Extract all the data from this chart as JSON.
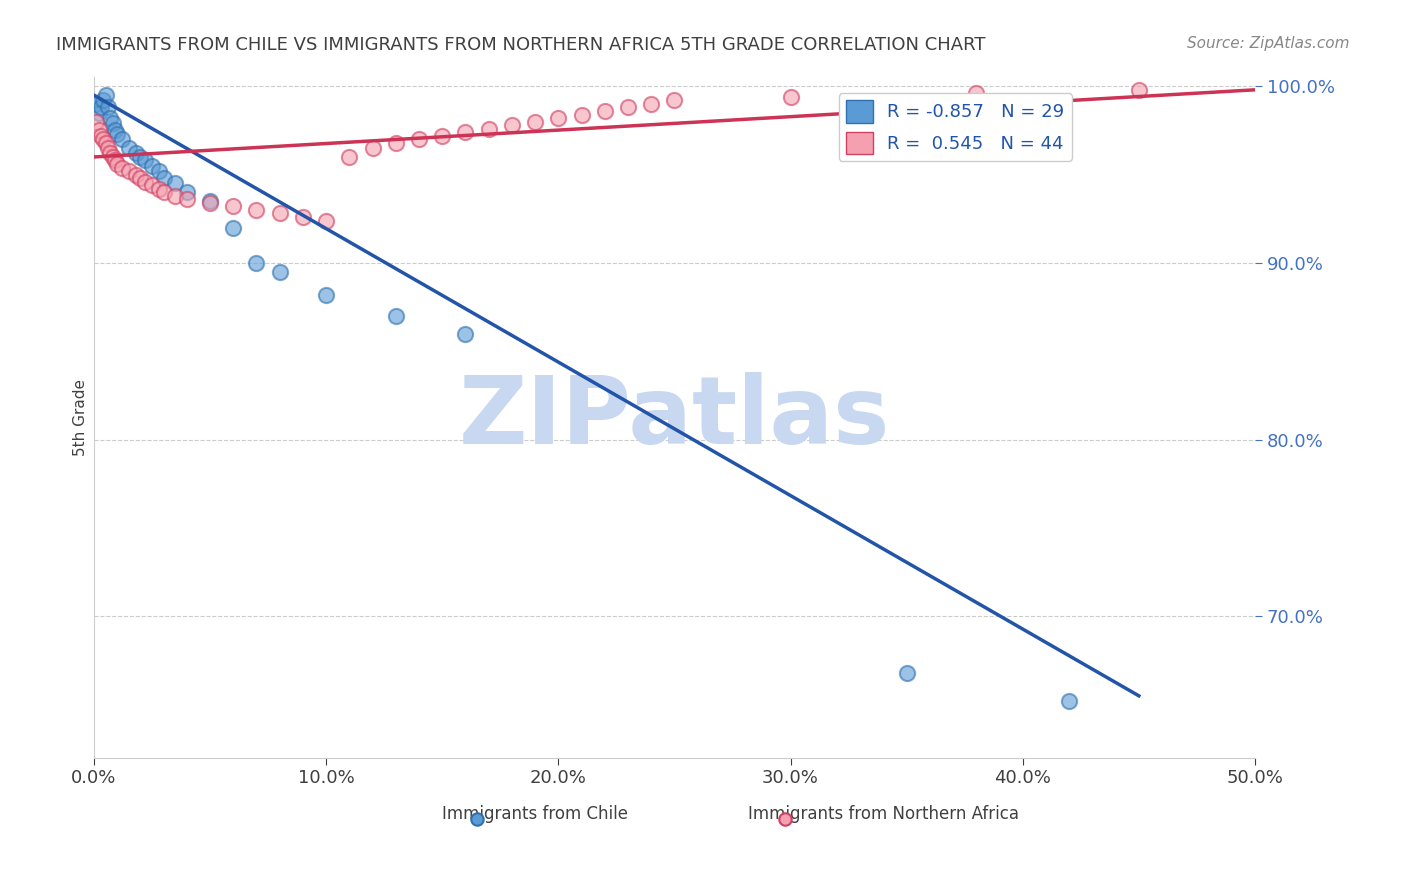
{
  "title": "IMMIGRANTS FROM CHILE VS IMMIGRANTS FROM NORTHERN AFRICA 5TH GRADE CORRELATION CHART",
  "source": "Source: ZipAtlas.com",
  "ylabel_left": "5th Grade",
  "xlim": [
    0.0,
    0.5
  ],
  "ylim": [
    0.62,
    1.005
  ],
  "yticks": [
    0.7,
    0.8,
    0.9,
    1.0
  ],
  "ytick_labels": [
    "70.0%",
    "80.0%",
    "90.0%",
    "100.0%"
  ],
  "xtick_labels": [
    "0.0%",
    "10.0%",
    "20.0%",
    "30.0%",
    "40.0%",
    "50.0%"
  ],
  "xticks": [
    0.0,
    0.1,
    0.2,
    0.3,
    0.4,
    0.5
  ],
  "chile_color": "#5b9bd5",
  "chile_edge_color": "#3070b0",
  "nafrica_color": "#f4a0b0",
  "nafrica_edge_color": "#d04060",
  "chile_R": -0.857,
  "chile_N": 29,
  "nafrica_R": 0.545,
  "nafrica_N": 44,
  "watermark": "ZIPatlas",
  "watermark_color": "#c8d8f0",
  "legend_label_chile": "Immigrants from Chile",
  "legend_label_nafrica": "Immigrants from Northern Africa",
  "chile_scatter_x": [
    0.001,
    0.002,
    0.003,
    0.004,
    0.005,
    0.006,
    0.007,
    0.008,
    0.009,
    0.01,
    0.012,
    0.015,
    0.018,
    0.02,
    0.022,
    0.025,
    0.028,
    0.03,
    0.035,
    0.04,
    0.05,
    0.06,
    0.07,
    0.08,
    0.1,
    0.13,
    0.16,
    0.35,
    0.42
  ],
  "chile_scatter_y": [
    0.99,
    0.985,
    0.988,
    0.992,
    0.995,
    0.988,
    0.982,
    0.979,
    0.975,
    0.973,
    0.97,
    0.965,
    0.962,
    0.96,
    0.958,
    0.955,
    0.952,
    0.948,
    0.945,
    0.94,
    0.935,
    0.92,
    0.9,
    0.895,
    0.882,
    0.87,
    0.86,
    0.668,
    0.652
  ],
  "nafrica_scatter_x": [
    0.001,
    0.002,
    0.003,
    0.004,
    0.005,
    0.006,
    0.007,
    0.008,
    0.009,
    0.01,
    0.012,
    0.015,
    0.018,
    0.02,
    0.022,
    0.025,
    0.028,
    0.03,
    0.035,
    0.04,
    0.05,
    0.06,
    0.07,
    0.08,
    0.09,
    0.1,
    0.11,
    0.12,
    0.13,
    0.14,
    0.15,
    0.16,
    0.17,
    0.18,
    0.19,
    0.2,
    0.21,
    0.22,
    0.23,
    0.24,
    0.25,
    0.3,
    0.38,
    0.45
  ],
  "nafrica_scatter_y": [
    0.98,
    0.975,
    0.972,
    0.97,
    0.968,
    0.965,
    0.962,
    0.96,
    0.958,
    0.956,
    0.954,
    0.952,
    0.95,
    0.948,
    0.946,
    0.944,
    0.942,
    0.94,
    0.938,
    0.936,
    0.934,
    0.932,
    0.93,
    0.928,
    0.926,
    0.924,
    0.96,
    0.965,
    0.968,
    0.97,
    0.972,
    0.974,
    0.976,
    0.978,
    0.98,
    0.982,
    0.984,
    0.986,
    0.988,
    0.99,
    0.992,
    0.994,
    0.996,
    0.998
  ],
  "chile_line_x": [
    0.0,
    0.45
  ],
  "chile_line_y": [
    0.995,
    0.655
  ],
  "nafrica_line_x": [
    0.0,
    0.5
  ],
  "nafrica_line_y": [
    0.96,
    0.998
  ],
  "background_color": "#ffffff",
  "grid_color": "#cccccc",
  "axis_color": "#4472c4",
  "title_color": "#404040",
  "ylabel_color": "#404040"
}
